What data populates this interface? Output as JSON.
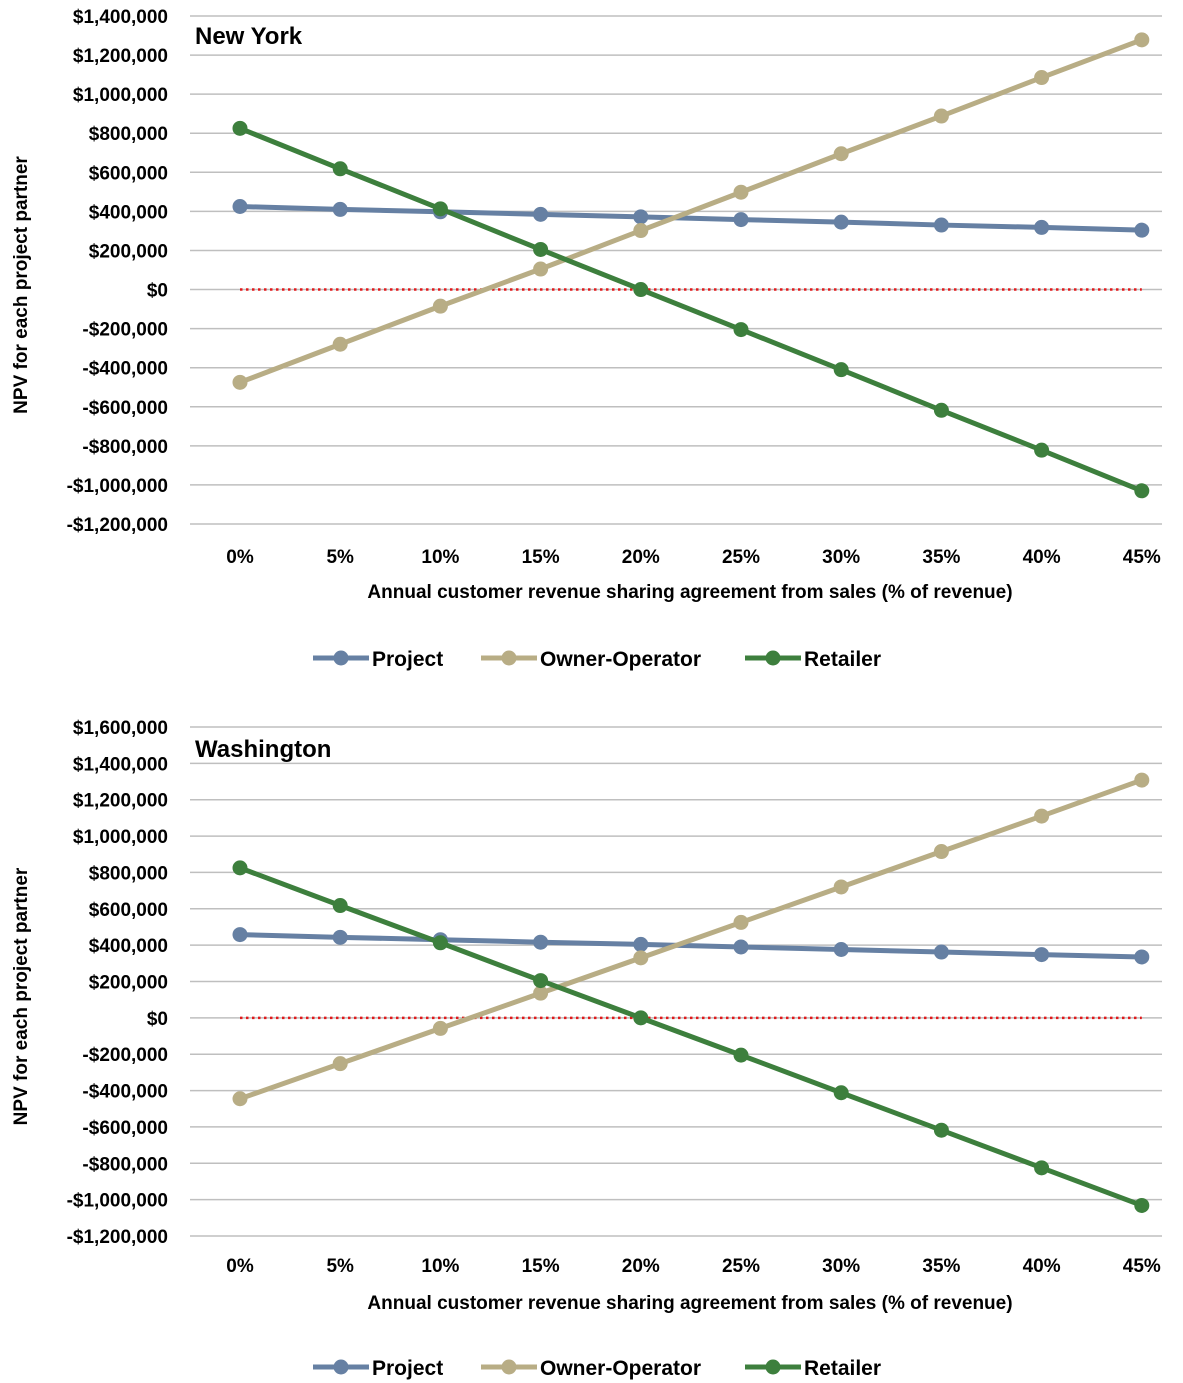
{
  "chart_data": [
    {
      "type": "line",
      "title": "New York",
      "xlabel": "Annual customer revenue sharing agreement from sales (% of revenue)",
      "ylabel": "NPV for each project partner",
      "categories": [
        "0%",
        "5%",
        "10%",
        "15%",
        "20%",
        "25%",
        "30%",
        "35%",
        "40%",
        "45%"
      ],
      "ylim": [
        -1200000,
        1400000
      ],
      "yticks": [
        1400000,
        1200000,
        1000000,
        800000,
        600000,
        400000,
        200000,
        0,
        -200000,
        -400000,
        -600000,
        -800000,
        -1000000,
        -1200000
      ],
      "ytick_labels": [
        "$1,400,000",
        "$1,200,000",
        "$1,000,000",
        "$800,000",
        "$600,000",
        "$400,000",
        "$200,000",
        "$0",
        "-$200,000",
        "-$400,000",
        "-$600,000",
        "-$800,000",
        "-$1,000,000",
        "-$1,200,000"
      ],
      "grid": true,
      "legend_position": "bottom",
      "reference_line": {
        "y": 0,
        "color": "#e0191b",
        "style": "dotted"
      },
      "series": [
        {
          "name": "Project",
          "color": "#6680a3",
          "values": [
            425000,
            410000,
            398000,
            385000,
            372000,
            358000,
            345000,
            330000,
            318000,
            304000
          ]
        },
        {
          "name": "Owner-Operator",
          "color": "#b8ad85",
          "values": [
            -475000,
            -280000,
            -85000,
            105000,
            302000,
            498000,
            695000,
            888000,
            1085000,
            1278000
          ]
        },
        {
          "name": "Retailer",
          "color": "#3d7f3d",
          "values": [
            825000,
            618000,
            413000,
            205000,
            0,
            -205000,
            -410000,
            -618000,
            -822000,
            -1030000
          ]
        }
      ]
    },
    {
      "type": "line",
      "title": "Washington",
      "xlabel": "Annual customer revenue sharing agreement from sales (% of revenue)",
      "ylabel": "NPV for each project partner",
      "categories": [
        "0%",
        "5%",
        "10%",
        "15%",
        "20%",
        "25%",
        "30%",
        "35%",
        "40%",
        "45%"
      ],
      "ylim": [
        -1200000,
        1600000
      ],
      "yticks": [
        1600000,
        1400000,
        1200000,
        1000000,
        800000,
        600000,
        400000,
        200000,
        0,
        -200000,
        -400000,
        -600000,
        -800000,
        -1000000,
        -1200000
      ],
      "ytick_labels": [
        "$1,600,000",
        "$1,400,000",
        "$1,200,000",
        "$1,000,000",
        "$800,000",
        "$600,000",
        "$400,000",
        "$200,000",
        "$0",
        "-$200,000",
        "-$400,000",
        "-$600,000",
        "-$800,000",
        "-$1,000,000",
        "-$1,200,000"
      ],
      "grid": true,
      "legend_position": "bottom",
      "reference_line": {
        "y": 0,
        "color": "#e0191b",
        "style": "dotted"
      },
      "series": [
        {
          "name": "Project",
          "color": "#6680a3",
          "values": [
            458000,
            443000,
            430000,
            416000,
            404000,
            390000,
            376000,
            362000,
            348000,
            335000
          ]
        },
        {
          "name": "Owner-Operator",
          "color": "#b8ad85",
          "values": [
            -445000,
            -252000,
            -58000,
            136000,
            330000,
            525000,
            720000,
            915000,
            1110000,
            1308000
          ]
        },
        {
          "name": "Retailer",
          "color": "#3d7f3d",
          "values": [
            825000,
            618000,
            413000,
            205000,
            0,
            -205000,
            -412000,
            -618000,
            -825000,
            -1032000
          ]
        }
      ]
    }
  ]
}
